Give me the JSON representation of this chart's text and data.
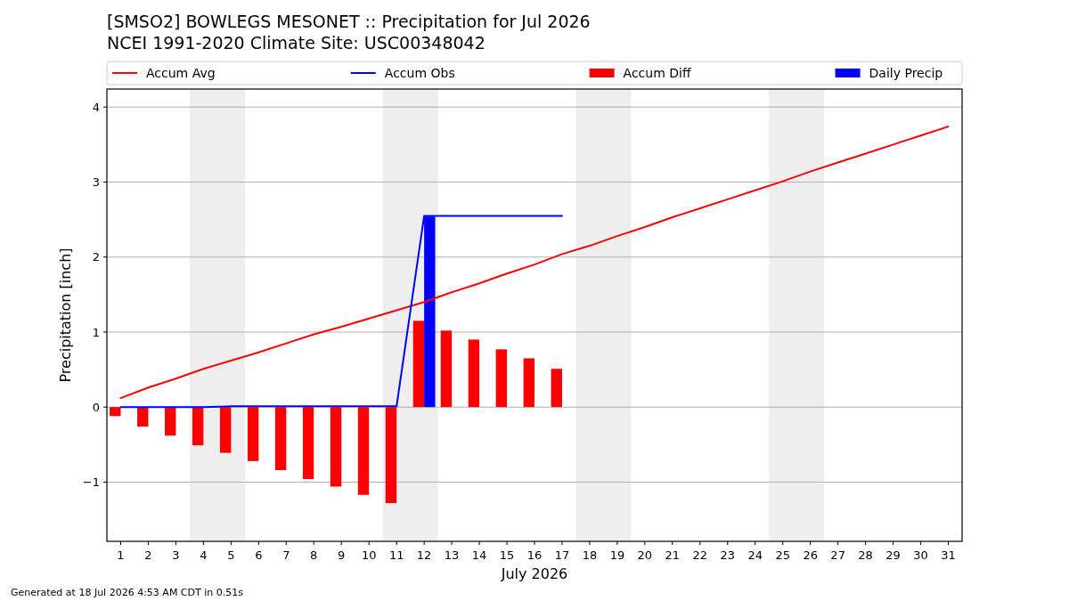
{
  "chart_data": {
    "type": "bar",
    "title": "[SMSO2] BOWLEGS MESONET :: Precipitation for Jul 2026",
    "subtitle": "NCEI 1991-2020 Climate Site: USC00348042",
    "xlabel": "July 2026",
    "ylabel": "Precipitation [inch]",
    "xlim": [
      0.5,
      31.5
    ],
    "xticks": [
      1,
      2,
      3,
      4,
      5,
      6,
      7,
      8,
      9,
      10,
      11,
      12,
      13,
      14,
      15,
      16,
      17,
      18,
      19,
      20,
      21,
      22,
      23,
      24,
      25,
      26,
      27,
      28,
      29,
      30,
      31
    ],
    "ylim": [
      -1.79,
      4.24
    ],
    "yticks": [
      {
        "value": -1,
        "label": "−1"
      },
      0,
      1,
      2,
      3,
      4
    ],
    "grid": "y",
    "legend": "top",
    "bands": [
      {
        "axis": "x",
        "from": 3.5,
        "to": 5.5,
        "color": "#eeeeee"
      },
      {
        "axis": "x",
        "from": 10.5,
        "to": 12.5,
        "color": "#eeeeee"
      },
      {
        "axis": "x",
        "from": 17.5,
        "to": 19.5,
        "color": "#eeeeee"
      },
      {
        "axis": "x",
        "from": 24.5,
        "to": 26.5,
        "color": "#eeeeee"
      }
    ],
    "series": [
      {
        "name": "Accum Avg",
        "type": "line",
        "color": "#ff0000",
        "x": [
          1,
          2,
          3,
          4,
          5,
          6,
          7,
          8,
          9,
          10,
          11,
          12,
          13,
          14,
          15,
          16,
          17,
          18,
          19,
          20,
          21,
          22,
          23,
          24,
          25,
          26,
          27,
          28,
          29,
          30,
          31
        ],
        "values": [
          0.12,
          0.26,
          0.38,
          0.51,
          0.62,
          0.73,
          0.85,
          0.97,
          1.07,
          1.18,
          1.29,
          1.4,
          1.53,
          1.65,
          1.78,
          1.9,
          2.04,
          2.15,
          2.28,
          2.4,
          2.53,
          2.65,
          2.77,
          2.89,
          3.01,
          3.14,
          3.26,
          3.38,
          3.5,
          3.62,
          3.74
        ]
      },
      {
        "name": "Accum Obs",
        "type": "line",
        "color": "#0000ff",
        "x": [
          1,
          2,
          3,
          4,
          5,
          6,
          7,
          8,
          9,
          10,
          11,
          12,
          13,
          14,
          15,
          16,
          17
        ],
        "values": [
          0,
          0,
          0,
          0,
          0.01,
          0.01,
          0.01,
          0.01,
          0.01,
          0.01,
          0.01,
          2.55,
          2.55,
          2.55,
          2.55,
          2.55,
          2.55
        ]
      },
      {
        "name": "Accum Diff",
        "color": "#ff0000",
        "x": [
          1,
          2,
          3,
          4,
          5,
          6,
          7,
          8,
          9,
          10,
          11,
          12,
          13,
          14,
          15,
          16,
          17
        ],
        "values": [
          -0.12,
          -0.26,
          -0.38,
          -0.51,
          -0.61,
          -0.72,
          -0.84,
          -0.96,
          -1.06,
          -1.17,
          -1.28,
          1.15,
          1.02,
          0.9,
          0.77,
          0.65,
          0.51
        ]
      },
      {
        "name": "Daily Precip",
        "color": "#0000ff",
        "x": [
          12
        ],
        "values": [
          2.54
        ]
      }
    ],
    "annotations": [
      "Generated at 18 Jul 2026 4:53 AM CDT in 0.51s"
    ]
  }
}
